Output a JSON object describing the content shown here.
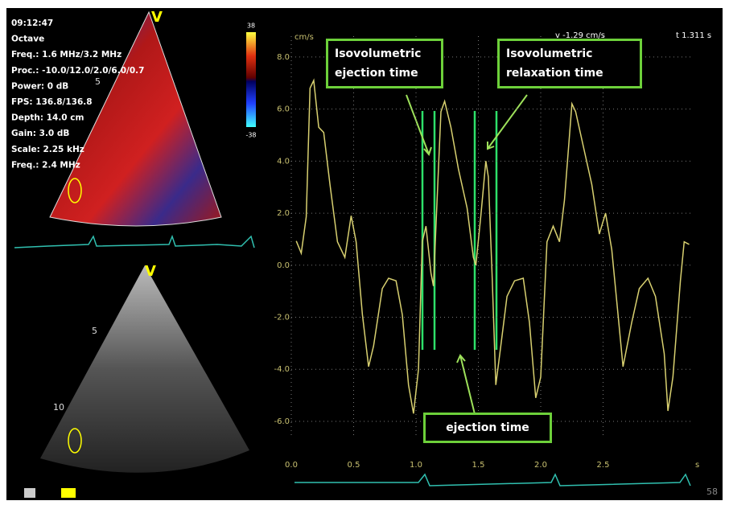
{
  "overlay": {
    "info_lines": [
      "09:12:47",
      "Octave",
      "Freq.: 1.6 MHz/3.2 MHz",
      "Proc.: -10.0/12.0/2.0/6.0/0.7",
      "Power: 0 dB",
      "FPS: 136.8/136.8",
      "Depth: 14.0 cm",
      "Gain: 3.0 dB",
      "Scale: 2.25 kHz",
      "Freq.: 2.4 MHz"
    ],
    "color_scale_max": 38,
    "color_scale_min": -38,
    "view_marker_top": "V",
    "view_marker_bottom": "V",
    "depth_top": "5",
    "depth_bottom_5": "5",
    "depth_bottom_10": "10",
    "frame_count": "58"
  },
  "chart_data": {
    "type": "line",
    "y_label": "cm/s",
    "x_unit": "s",
    "readout_v": "v -1.29 cm/s",
    "readout_t": "t 1.311 s",
    "annotations": [
      "Isovolumetric ejection time",
      "Isovolumetric relaxation time",
      "ejection time"
    ],
    "x": [
      0.04,
      0.08,
      0.12,
      0.15,
      0.18,
      0.22,
      0.26,
      0.31,
      0.37,
      0.43,
      0.48,
      0.52,
      0.57,
      0.62,
      0.66,
      0.73,
      0.78,
      0.84,
      0.89,
      0.94,
      0.98,
      1.02,
      1.05,
      1.08,
      1.12,
      1.14,
      1.16,
      1.2,
      1.23,
      1.28,
      1.34,
      1.41,
      1.46,
      1.48,
      1.52,
      1.56,
      1.58,
      1.61,
      1.64,
      1.68,
      1.73,
      1.79,
      1.86,
      1.91,
      1.96,
      2.0,
      2.05,
      2.1,
      2.15,
      2.19,
      2.25,
      2.28,
      2.34,
      2.41,
      2.47,
      2.52,
      2.57,
      2.62,
      2.66,
      2.73,
      2.79,
      2.86,
      2.92,
      2.99,
      3.02,
      3.06,
      3.12,
      3.15,
      3.19
    ],
    "series": [
      {
        "color": "#d8d070",
        "values": [
          0.93,
          0.46,
          1.86,
          6.8,
          7.1,
          5.3,
          5.1,
          3.1,
          0.9,
          0.3,
          1.9,
          0.9,
          -1.9,
          -3.9,
          -3.1,
          -0.9,
          -0.5,
          -0.6,
          -1.9,
          -4.6,
          -5.7,
          -4.0,
          0.9,
          1.5,
          -0.3,
          -0.8,
          1.5,
          5.9,
          6.3,
          5.3,
          3.7,
          2.2,
          0.3,
          0.0,
          1.9,
          4.0,
          3.4,
          -0.3,
          -4.6,
          -3.1,
          -1.2,
          -0.6,
          -0.5,
          -2.2,
          -5.1,
          -4.3,
          0.9,
          1.5,
          0.9,
          2.5,
          6.2,
          5.9,
          4.6,
          3.1,
          1.2,
          2.0,
          0.6,
          -1.9,
          -3.9,
          -2.2,
          -0.9,
          -0.5,
          -1.2,
          -3.4,
          -5.6,
          -4.3,
          -0.6,
          0.9,
          0.8
        ]
      }
    ],
    "xlim": [
      0,
      3.2
    ],
    "ylim": [
      -6.65,
      8.8
    ],
    "xticks": [
      {
        "value": 0,
        "label": "0.0"
      },
      {
        "value": 0.5,
        "label": "0.5"
      },
      {
        "value": 1,
        "label": "1.0"
      },
      {
        "value": 1.5,
        "label": "1.5"
      },
      {
        "value": 2,
        "label": "2.0"
      },
      {
        "value": 2.5,
        "label": "2.5"
      }
    ],
    "yticks": [
      {
        "value": -6,
        "label": "-6.0"
      },
      {
        "value": -4,
        "label": "-4.0"
      },
      {
        "value": -2,
        "label": "-2.0"
      },
      {
        "value": 0,
        "label": "0.0"
      },
      {
        "value": 2,
        "label": "2.0"
      },
      {
        "value": 4,
        "label": "4.0"
      },
      {
        "value": 6,
        "label": "6.0"
      },
      {
        "value": 8,
        "label": "8.0"
      }
    ],
    "grid": true
  }
}
